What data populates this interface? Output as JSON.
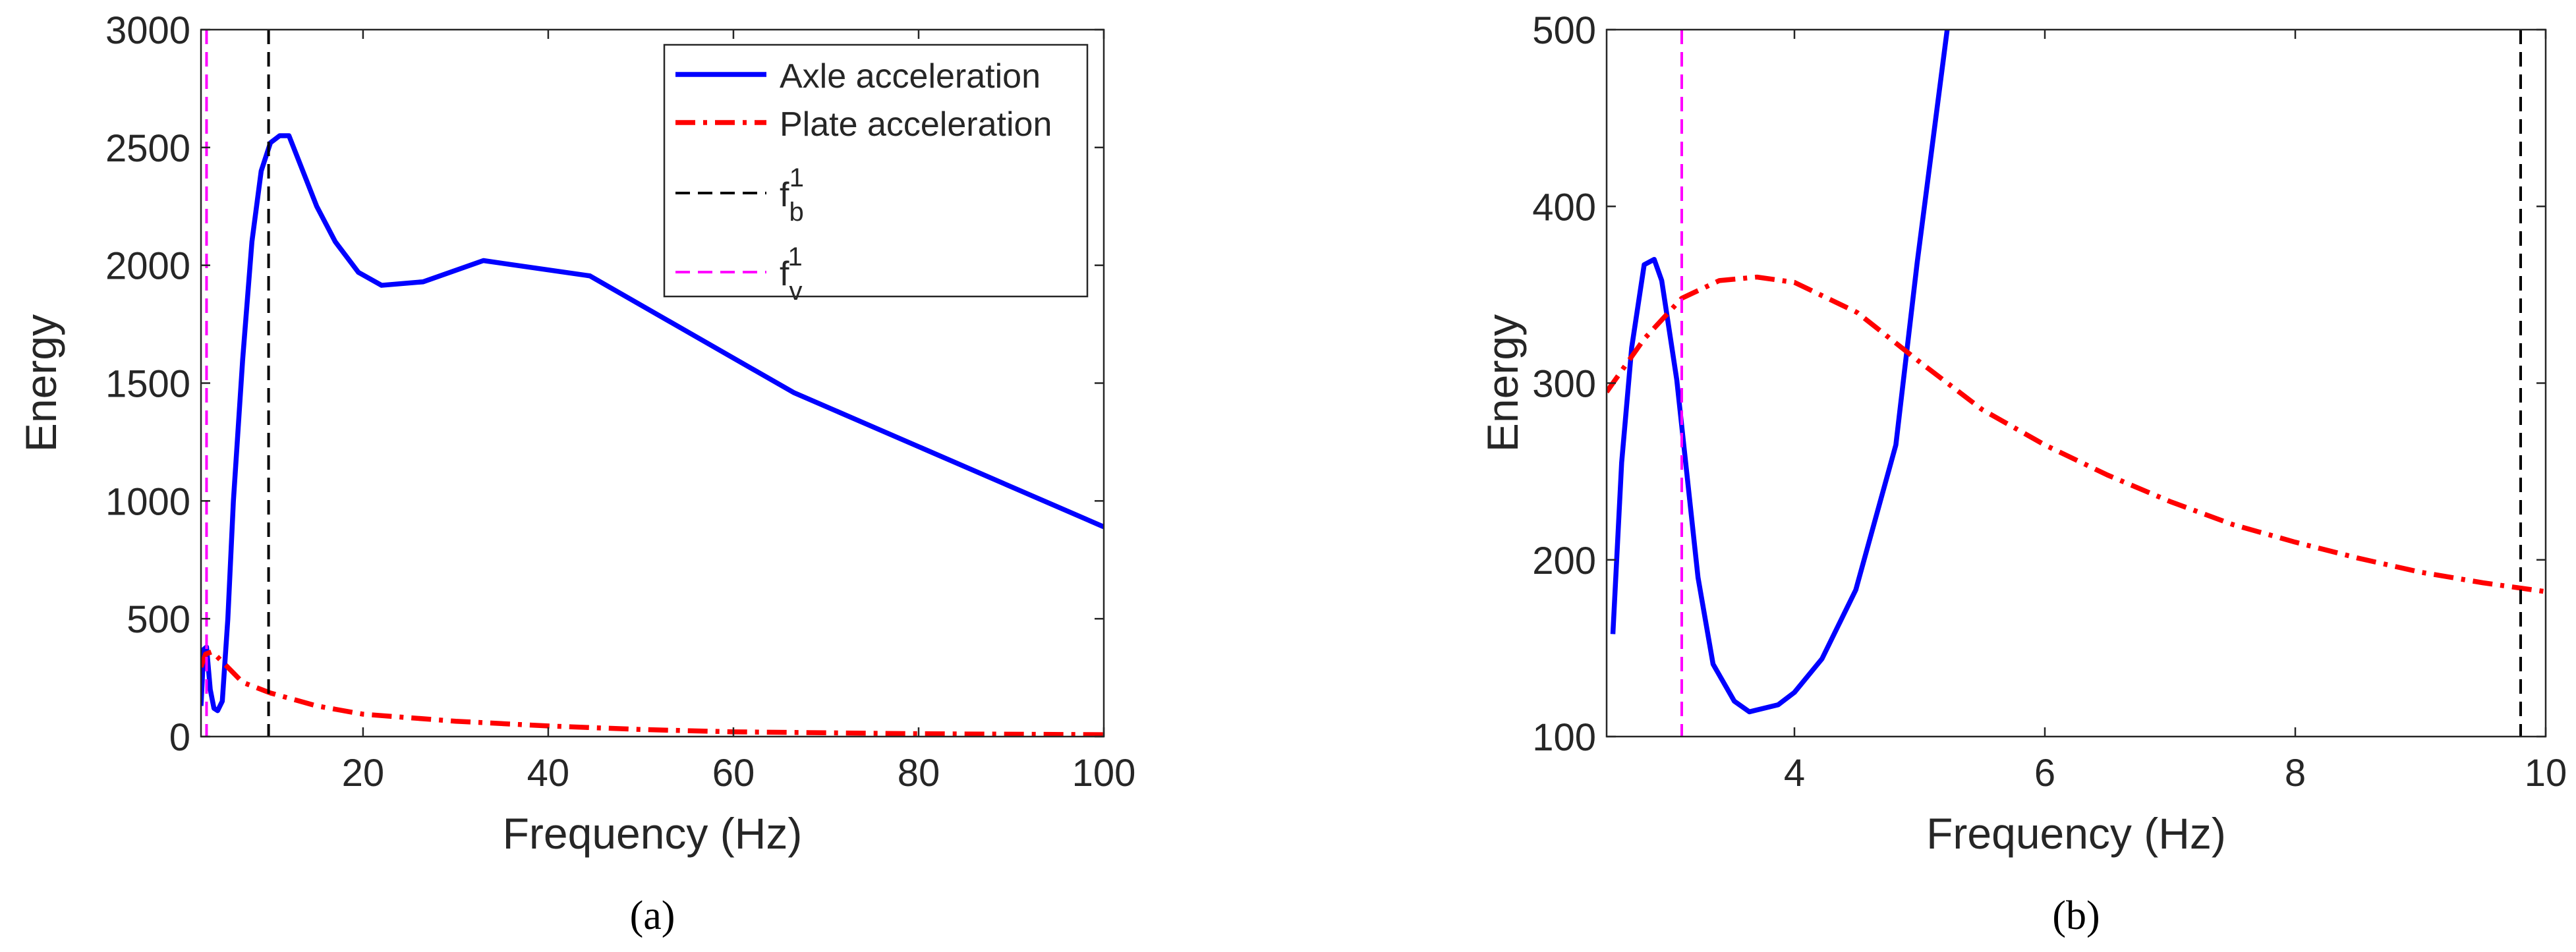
{
  "chart_data": [
    {
      "type": "line",
      "caption": "(a)",
      "xlabel": "Frequency (Hz)",
      "ylabel": "Energy",
      "xlim": [
        2.5,
        100
      ],
      "xticks": [
        20,
        40,
        60,
        80,
        100
      ],
      "ylim": [
        0,
        3000
      ],
      "yticks": [
        0,
        500,
        1000,
        1500,
        2000,
        2500,
        3000
      ],
      "legend": "northeast",
      "series": [
        {
          "name": "Axle acceleration",
          "color": "#0000ff",
          "style": "solid",
          "x": [
            2.5,
            2.8,
            3.1,
            3.5,
            3.9,
            4.3,
            4.8,
            5.4,
            6,
            7,
            8,
            9,
            10,
            11,
            12,
            13.5,
            15,
            17,
            19.5,
            22,
            26.5,
            33,
            44.5,
            66.5,
            100
          ],
          "values": [
            130,
            370,
            380,
            200,
            120,
            110,
            150,
            500,
            1000,
            1600,
            2100,
            2400,
            2520,
            2550,
            2550,
            2400,
            2250,
            2100,
            1970,
            1915,
            1930,
            2020,
            1955,
            1460,
            890
          ]
        },
        {
          "name": "Plate acceleration",
          "color": "#ff0000",
          "style": "dashdot",
          "x": [
            2.5,
            3,
            3.7,
            5,
            7,
            10,
            15,
            20,
            30,
            40,
            50,
            60,
            80,
            100
          ],
          "values": [
            295,
            350,
            360,
            310,
            230,
            185,
            130,
            95,
            65,
            45,
            30,
            20,
            12,
            8
          ]
        }
      ],
      "vlines": [
        {
          "name": "f",
          "sub": "b",
          "sup": "1",
          "color": "#000000",
          "x": 9.8
        },
        {
          "name": "f",
          "sub": "v",
          "sup": "1",
          "color": "#ff00ff",
          "x": 3.1
        }
      ]
    },
    {
      "type": "line",
      "caption": "(b)",
      "xlabel": "Frequency (Hz)",
      "ylabel": "Energy",
      "xlim": [
        2.5,
        10
      ],
      "xticks": [
        4,
        6,
        8,
        10
      ],
      "ylim": [
        100,
        500
      ],
      "yticks": [
        100,
        200,
        300,
        400,
        500
      ],
      "series": [
        {
          "color": "#0000ff",
          "style": "solid",
          "x": [
            2.55,
            2.62,
            2.7,
            2.8,
            2.88,
            2.94,
            3.06,
            3.23,
            3.35,
            3.52,
            3.64,
            3.87,
            4.0,
            4.22,
            4.49,
            4.81,
            4.98,
            5.22
          ],
          "values": [
            158,
            255,
            320,
            367,
            370,
            358,
            302,
            190,
            141,
            120,
            114,
            118,
            125,
            144,
            183,
            265,
            368,
            500
          ]
        },
        {
          "color": "#ff0000",
          "style": "dashdot",
          "x": [
            2.5,
            2.8,
            3.1,
            3.4,
            3.7,
            4,
            4.5,
            5,
            5.5,
            6,
            6.5,
            7,
            7.5,
            8,
            8.5,
            9,
            9.5,
            10
          ],
          "values": [
            295,
            325,
            348,
            358,
            360,
            357,
            340,
            312,
            285,
            265,
            248,
            233,
            220,
            210,
            201,
            193,
            187,
            182
          ]
        }
      ],
      "vlines": [
        {
          "color": "#000000",
          "x": 9.8
        },
        {
          "color": "#ff00ff",
          "x": 3.1
        }
      ]
    }
  ]
}
